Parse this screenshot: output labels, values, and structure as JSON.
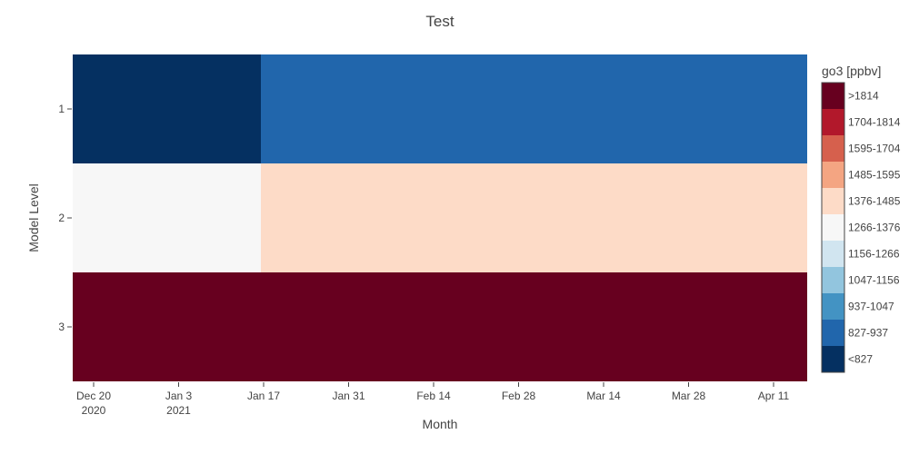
{
  "chart_data": {
    "type": "heatmap",
    "title": "Test",
    "xlabel": "Month",
    "ylabel": "Model Level",
    "x_ticks": [
      {
        "label": "Dec 20",
        "sub": "2020"
      },
      {
        "label": "Jan 3",
        "sub": "2021"
      },
      {
        "label": "Jan 17",
        "sub": ""
      },
      {
        "label": "Jan 31",
        "sub": ""
      },
      {
        "label": "Feb 14",
        "sub": ""
      },
      {
        "label": "Feb 28",
        "sub": ""
      },
      {
        "label": "Mar 14",
        "sub": ""
      },
      {
        "label": "Mar 28",
        "sub": ""
      },
      {
        "label": "Apr 11",
        "sub": ""
      }
    ],
    "y_categories": [
      "1",
      "2",
      "3"
    ],
    "x_periods": [
      "Dec 2020",
      "Jan 2021 – Apr 2021"
    ],
    "cells": [
      {
        "level": "1",
        "period": "Dec 2020",
        "bin": "<827"
      },
      {
        "level": "1",
        "period": "Jan 2021 – Apr 2021",
        "bin": "827-937"
      },
      {
        "level": "2",
        "period": "Dec 2020",
        "bin": "1266-1376"
      },
      {
        "level": "2",
        "period": "Jan 2021 – Apr 2021",
        "bin": "1376-1485"
      },
      {
        "level": "3",
        "period": "Dec 2020",
        "bin": ">1814"
      },
      {
        "level": "3",
        "period": "Jan 2021 – Apr 2021",
        "bin": ">1814"
      }
    ],
    "colorbar": {
      "title": "go3 [ppbv]",
      "bins": [
        {
          "label": ">1814",
          "color": "#67001f"
        },
        {
          "label": "1704-1814",
          "color": "#b2182b"
        },
        {
          "label": "1595-1704",
          "color": "#d6604d"
        },
        {
          "label": "1485-1595",
          "color": "#f4a582"
        },
        {
          "label": "1376-1485",
          "color": "#fddbc7"
        },
        {
          "label": "1266-1376",
          "color": "#f7f7f7"
        },
        {
          "label": "1156-1266",
          "color": "#d1e5f0"
        },
        {
          "label": "1047-1156",
          "color": "#92c5de"
        },
        {
          "label": "937-1047",
          "color": "#4393c3"
        },
        {
          "label": "827-937",
          "color": "#2166ac"
        },
        {
          "label": "<827",
          "color": "#053061"
        }
      ]
    }
  }
}
